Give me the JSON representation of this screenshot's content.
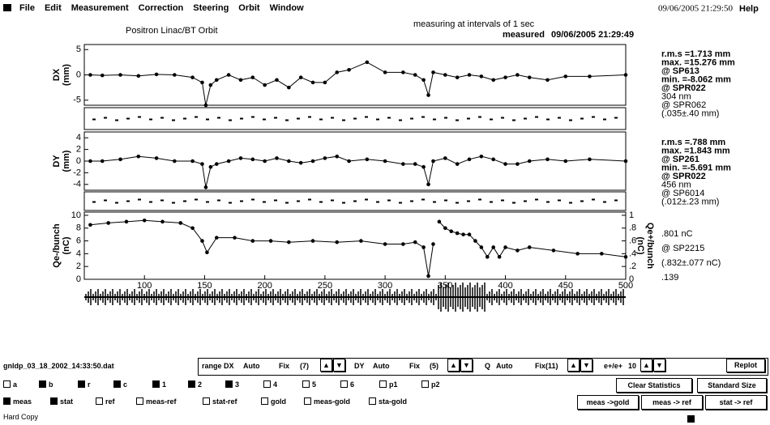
{
  "menu": {
    "items": [
      "File",
      "Edit",
      "Measurement",
      "Correction",
      "Steering",
      "Orbit",
      "Window"
    ],
    "datetime": "09/06/2005 21:29:50",
    "help": "Help"
  },
  "header": {
    "title": "Positron Linac/BT Orbit",
    "status": "measuring at intervals of 1 sec",
    "measured_label": "measured",
    "measured_time": "09/06/2005 21:29:49"
  },
  "plots": {
    "xlim": [
      50,
      500
    ],
    "xticks": [
      100,
      150,
      200,
      250,
      300,
      350,
      400,
      450,
      500
    ],
    "panels": [
      {
        "ylabel": [
          "DX",
          "(mm)"
        ],
        "ylim": [
          -6,
          6
        ],
        "yticks": [
          -5,
          0,
          5
        ],
        "series": [
          {
            "color": "#000000",
            "x": [
              55,
              65,
              80,
              95,
              110,
              125,
              140,
              148,
              151,
              155,
              160,
              170,
              180,
              190,
              200,
              210,
              220,
              230,
              240,
              250,
              260,
              270,
              285,
              300,
              315,
              325,
              332,
              336,
              340,
              350,
              360,
              370,
              380,
              390,
              400,
              410,
              420,
              435,
              450,
              470,
              500
            ],
            "values": [
              0,
              -0.1,
              0,
              -0.2,
              0.1,
              0,
              -0.5,
              -1.5,
              -6,
              -2,
              -1,
              0,
              -1,
              -0.5,
              -2,
              -1,
              -2.5,
              -0.5,
              -1.5,
              -1.5,
              0.5,
              1,
              2.5,
              0.5,
              0.5,
              0,
              -1,
              -4,
              0.5,
              0,
              -0.5,
              0,
              -0.3,
              -1,
              -0.5,
              0,
              -0.5,
              -1,
              -0.3,
              -0.3,
              0
            ]
          }
        ]
      },
      {
        "ylabel": [
          "DY",
          "(mm)"
        ],
        "ylim": [
          -5,
          5
        ],
        "yticks": [
          -4,
          -2,
          0,
          2,
          4
        ],
        "series": [
          {
            "color": "#000000",
            "x": [
              55,
              65,
              80,
              95,
              110,
              125,
              140,
              148,
              151,
              155,
              160,
              170,
              180,
              190,
              200,
              210,
              220,
              230,
              240,
              250,
              260,
              270,
              285,
              300,
              315,
              325,
              332,
              336,
              340,
              350,
              360,
              370,
              380,
              390,
              400,
              410,
              420,
              435,
              450,
              470,
              500
            ],
            "values": [
              0,
              0,
              0.3,
              0.8,
              0.5,
              0,
              0,
              -0.5,
              -4.5,
              -1,
              -0.5,
              0,
              0.5,
              0.3,
              0,
              0.5,
              0,
              -0.3,
              0,
              0.5,
              0.8,
              0,
              0.3,
              0,
              -0.5,
              -0.5,
              -1,
              -4,
              0,
              0.5,
              -0.5,
              0.3,
              0.8,
              0.3,
              -0.5,
              -0.5,
              0,
              0.3,
              0,
              0.3,
              0
            ]
          }
        ]
      },
      {
        "ylabel": [
          "Qe-/bunch",
          "(nC)"
        ],
        "ylim": [
          0,
          10.5
        ],
        "yticks": [
          0,
          2,
          4,
          6,
          8,
          10
        ],
        "y2label": [
          "Qe+/bunch",
          "(nC)"
        ],
        "y2lim": [
          0,
          1.05
        ],
        "y2ticks": [
          0,
          {
            "value": 0.2,
            "label": ".2"
          },
          {
            "value": 0.4,
            "label": ".4"
          },
          {
            "value": 0.6,
            "label": ".6"
          },
          {
            "value": 0.8,
            "label": ".8"
          },
          1
        ],
        "series": [
          {
            "color": "#000000",
            "x": [
              55,
              70,
              85,
              100,
              115,
              130,
              140,
              148,
              152,
              160,
              175,
              190,
              205,
              220,
              240,
              260,
              280,
              300,
              315,
              325,
              332,
              336,
              340
            ],
            "values": [
              8.5,
              8.8,
              9,
              9.2,
              9,
              8.8,
              8,
              6,
              4.2,
              6.5,
              6.5,
              6,
              6,
              5.8,
              6,
              5.8,
              6,
              5.5,
              5.5,
              5.8,
              5,
              0.5,
              5.5
            ]
          },
          {
            "color": "#000000",
            "axis": "y2",
            "x": [
              345,
              350,
              355,
              360,
              365,
              370,
              375,
              380,
              385,
              390,
              395,
              400,
              410,
              420,
              440,
              460,
              480,
              500
            ],
            "values": [
              0.9,
              0.8,
              0.75,
              0.72,
              0.7,
              0.7,
              0.6,
              0.5,
              0.35,
              0.5,
              0.35,
              0.5,
              0.45,
              0.5,
              0.45,
              0.4,
              0.4,
              0.35
            ]
          }
        ]
      }
    ]
  },
  "stats": {
    "dx": [
      "r.m.s =1.713 mm",
      "max. =15.276 mm",
      "@ SP613",
      "min. =-8.062 mm",
      "@ SPR022",
      "304 nm",
      "@ SPR062",
      "(.035±.40 mm)"
    ],
    "dy": [
      "r.m.s =.788 mm",
      "max. =1.843 mm",
      "@ SP261",
      "min. =-5.691 mm",
      "@ SPR022",
      "456 nm",
      "@ SP6014",
      "(.012±.23 mm)"
    ],
    "q": [
      ".801 nC",
      "@ SP2215",
      "(.832±.077 nC)",
      ".139"
    ]
  },
  "controls": {
    "file": "gnldp_03_18_2002_14:33:50.dat",
    "range": [
      "range DX",
      "Auto",
      "Fix",
      "(7)",
      "DY",
      "Auto",
      "Fix",
      "(5)",
      "Q",
      "Auto",
      "Fix(11)",
      "e+/e+",
      "10"
    ],
    "replot": "Replot",
    "row2": {
      "labels": [
        "a",
        "b",
        "r",
        "c",
        "1",
        "2",
        "3",
        "4",
        "5",
        "6",
        "p1",
        "p2"
      ],
      "checked": [
        false,
        true,
        true,
        true,
        true,
        true,
        true,
        false,
        false,
        false,
        false,
        false
      ]
    },
    "row3": {
      "labels": [
        "meas",
        "stat",
        "ref",
        "meas-ref",
        "stat-ref",
        "gold",
        "meas-gold",
        "sta-gold"
      ],
      "checked": [
        true,
        true,
        false,
        false,
        false,
        false,
        false,
        false
      ]
    },
    "buttons2": [
      "Clear Statistics",
      "Standard Size"
    ],
    "buttons3": [
      "meas ->gold",
      "meas -> ref",
      "stat -> ref"
    ],
    "hardcopy": "Hard Copy"
  }
}
